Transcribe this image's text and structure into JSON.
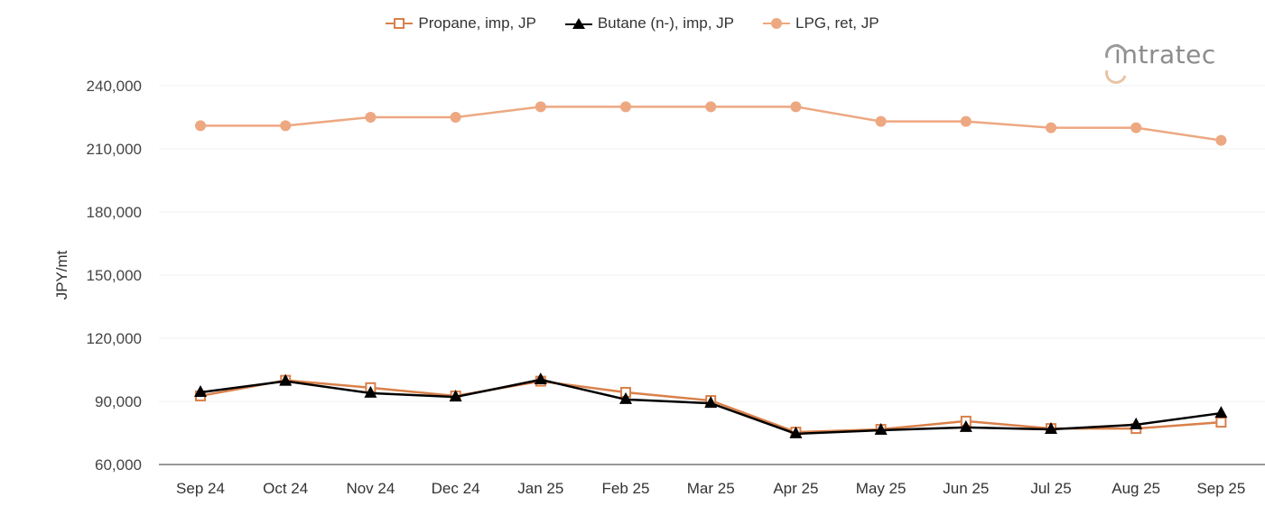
{
  "legend": [
    {
      "label": "Propane, imp, JP",
      "marker": "open-square",
      "color": "#d9804a"
    },
    {
      "label": "Butane (n-), imp, JP",
      "marker": "filled-triangle",
      "color": "#000000"
    },
    {
      "label": "LPG, ret, JP",
      "marker": "filled-circle",
      "color": "#eda882"
    }
  ],
  "logo": {
    "text": "intratec"
  },
  "chart_data": {
    "type": "line",
    "title": "",
    "xlabel": "",
    "ylabel": "JPY/mt",
    "categories": [
      "Sep 24",
      "Oct 24",
      "Nov 24",
      "Dec 24",
      "Jan 25",
      "Feb 25",
      "Mar 25",
      "Apr 25",
      "May 25",
      "Jun 25",
      "Jul 25",
      "Aug 25",
      "Sep 25"
    ],
    "ylim": [
      60000,
      240000
    ],
    "yticks": [
      60000,
      90000,
      120000,
      150000,
      180000,
      210000,
      240000
    ],
    "ytick_labels": [
      "60,000",
      "90,000",
      "120,000",
      "150,000",
      "180,000",
      "210,000",
      "240,000"
    ],
    "grid": true,
    "legend_position": "top",
    "series": [
      {
        "name": "Propane, imp, JP",
        "color": "#d9804a",
        "marker": "open-square",
        "values": [
          92600,
          100000,
          96500,
          92600,
          99600,
          94300,
          90400,
          75400,
          76700,
          80600,
          77100,
          77100,
          80100
        ]
      },
      {
        "name": "Butane (n-), imp, JP",
        "color": "#000000",
        "marker": "filled-triangle",
        "values": [
          94300,
          99600,
          93900,
          92100,
          100300,
          90900,
          89100,
          74600,
          76300,
          77600,
          76700,
          78900,
          84400
        ]
      },
      {
        "name": "LPG, ret, JP",
        "color": "#eda882",
        "marker": "filled-circle",
        "values": [
          221000,
          221000,
          225000,
          225000,
          230000,
          230000,
          230000,
          230000,
          223000,
          223000,
          220000,
          220000,
          214000
        ]
      }
    ]
  }
}
